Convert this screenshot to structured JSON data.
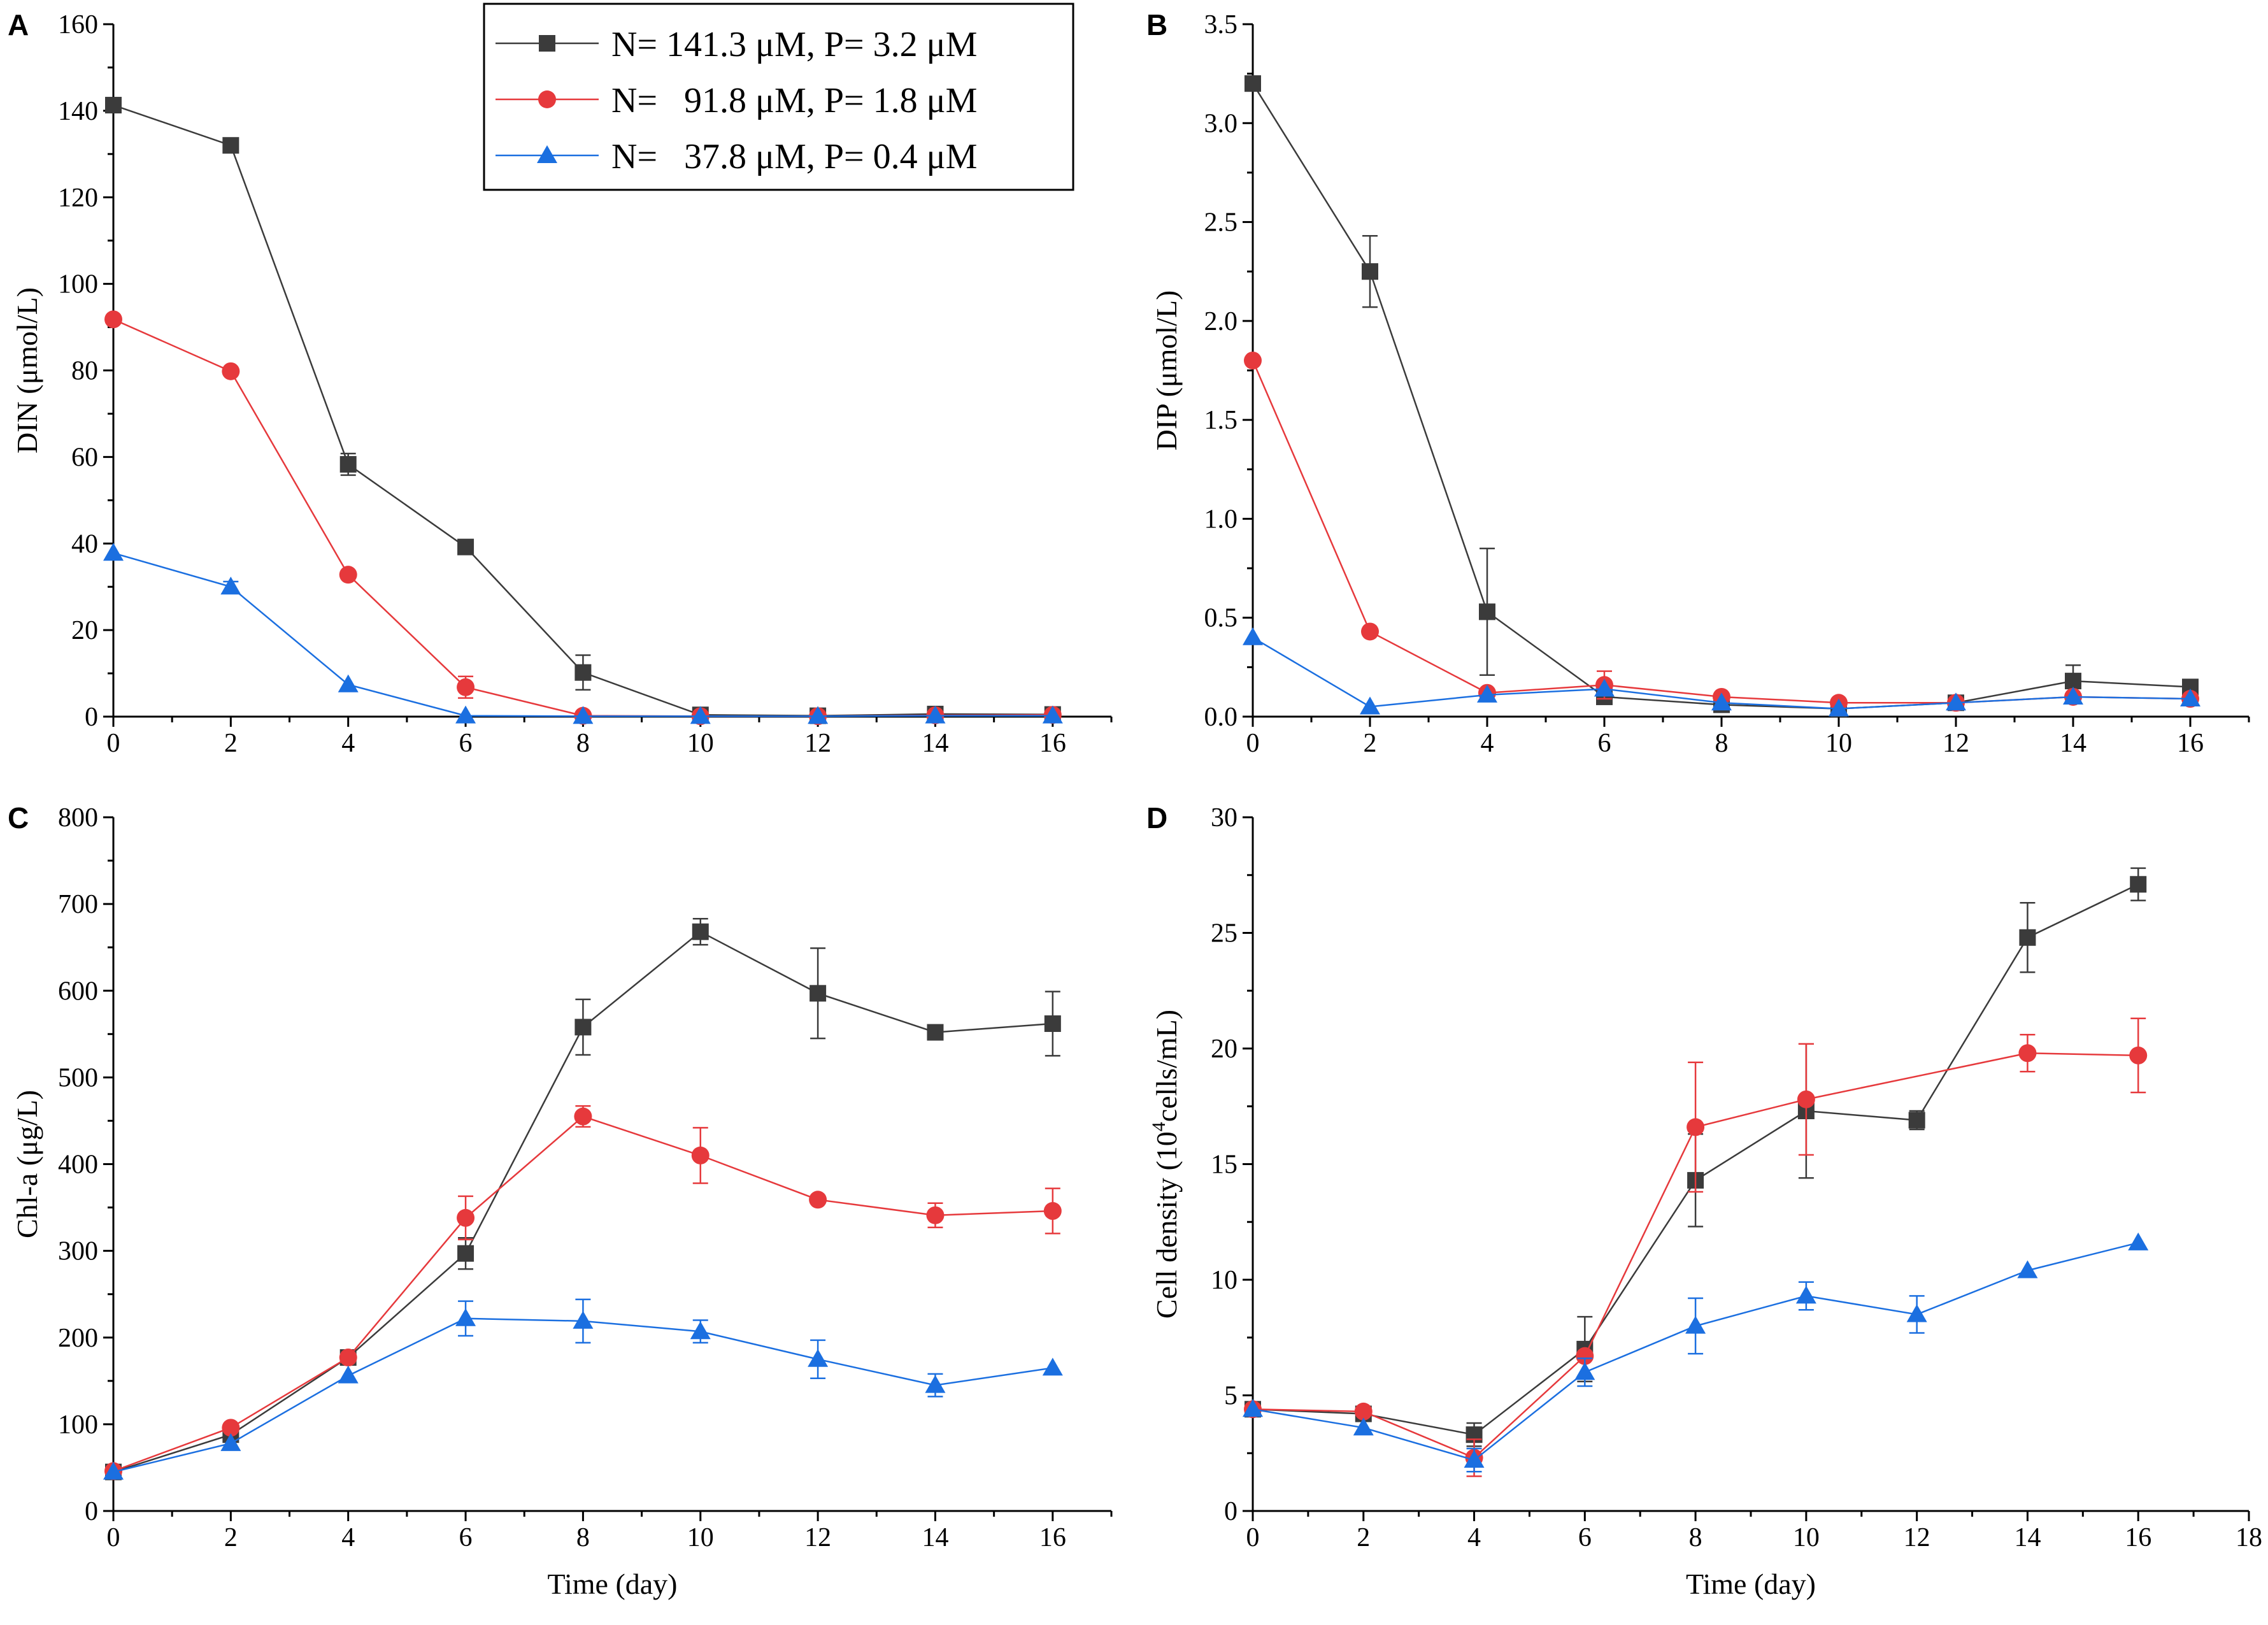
{
  "colors": {
    "black": "#3b3b3b",
    "red": "#e6393c",
    "blue": "#1b6fe0",
    "axis": "#000000"
  },
  "legend": [
    {
      "label": "N= 141.3 μM, P= 3.2 μM",
      "marker": "square",
      "color": "#3b3b3b"
    },
    {
      "label": "N=   91.8 μM, P= 1.8 μM",
      "marker": "circle",
      "color": "#e6393c"
    },
    {
      "label": "N=   37.8 μM, P= 0.4 μM",
      "marker": "triangle",
      "color": "#1b6fe0"
    }
  ],
  "chart_data": [
    {
      "panel": "A",
      "type": "line",
      "ylabel": "DIN (μmol/L)",
      "xlabel": "",
      "xlim": [
        0,
        17
      ],
      "ylim": [
        0,
        160
      ],
      "xticks": [
        0,
        2,
        4,
        6,
        8,
        10,
        12,
        14,
        16
      ],
      "yticks": [
        0,
        20,
        40,
        60,
        80,
        100,
        120,
        140,
        160
      ],
      "x": [
        0,
        2,
        4,
        6,
        8,
        10,
        12,
        14,
        16
      ],
      "series": [
        {
          "name": "N= 141.3 μM, P= 3.2 μM",
          "values": [
            141.3,
            132,
            58.3,
            39.2,
            10.2,
            0.4,
            0.2,
            0.6,
            0.5
          ],
          "errors": [
            0,
            0,
            2.5,
            0,
            4,
            0,
            0,
            0,
            0
          ]
        },
        {
          "name": "N=   91.8 μM, P= 1.8 μM",
          "values": [
            91.8,
            79.8,
            32.8,
            6.8,
            0.2,
            0.1,
            0.1,
            0.3,
            0.4
          ],
          "errors": [
            0,
            0,
            0,
            2.5,
            0,
            0,
            0,
            0,
            0
          ]
        },
        {
          "name": "N=   37.8 μM, P= 0.4 μM",
          "values": [
            37.8,
            30,
            7.4,
            0.2,
            0.1,
            0.1,
            0.1,
            0.2,
            0.2
          ],
          "errors": [
            0,
            1.2,
            0,
            0,
            0,
            0,
            0,
            0,
            0
          ]
        }
      ]
    },
    {
      "panel": "B",
      "type": "line",
      "ylabel": "DIP (μmol/L)",
      "xlabel": "",
      "xlim": [
        0,
        17
      ],
      "ylim": [
        0,
        3.5
      ],
      "xticks": [
        0,
        2,
        4,
        6,
        8,
        10,
        12,
        14,
        16
      ],
      "yticks": [
        0.0,
        0.5,
        1.0,
        1.5,
        2.0,
        2.5,
        3.0,
        3.5
      ],
      "ytick_labels": [
        "0.0",
        "0.5",
        "1.0",
        "1.5",
        "2.0",
        "2.5",
        "3.0",
        "3.5"
      ],
      "x": [
        0,
        2,
        4,
        6,
        8,
        10,
        12,
        14,
        16
      ],
      "series": [
        {
          "name": "N= 141.3 μM, P= 3.2 μM",
          "values": [
            3.2,
            2.25,
            0.53,
            0.1,
            0.06,
            0.04,
            0.07,
            0.18,
            0.15
          ],
          "errors": [
            0,
            0.18,
            0.32,
            0,
            0,
            0,
            0,
            0.08,
            0.03
          ]
        },
        {
          "name": "N=   91.8 μM, P= 1.8 μM",
          "values": [
            1.8,
            0.43,
            0.12,
            0.16,
            0.1,
            0.07,
            0.07,
            0.1,
            0.09
          ],
          "errors": [
            0,
            0,
            0,
            0.07,
            0,
            0,
            0,
            0,
            0
          ]
        },
        {
          "name": "N=   37.8 μM, P= 0.4 μM",
          "values": [
            0.4,
            0.05,
            0.11,
            0.14,
            0.07,
            0.04,
            0.07,
            0.1,
            0.09
          ],
          "errors": [
            0,
            0,
            0,
            0,
            0,
            0,
            0,
            0,
            0
          ]
        }
      ]
    },
    {
      "panel": "C",
      "type": "line",
      "ylabel": "Chl-a (μg/L)",
      "xlabel": "Time (day)",
      "xlim": [
        0,
        17
      ],
      "ylim": [
        0,
        800
      ],
      "xticks": [
        0,
        2,
        4,
        6,
        8,
        10,
        12,
        14,
        16
      ],
      "yticks": [
        0,
        100,
        200,
        300,
        400,
        500,
        600,
        700,
        800
      ],
      "x": [
        0,
        2,
        4,
        6,
        8,
        10,
        12,
        14,
        16
      ],
      "series": [
        {
          "name": "N= 141.3 μM, P= 3.2 μM",
          "values": [
            45,
            88,
            177,
            297,
            558,
            668,
            597,
            552,
            562
          ],
          "errors": [
            0,
            0,
            0,
            18,
            32,
            15,
            52,
            8,
            37
          ]
        },
        {
          "name": "N=   91.8 μM, P= 1.8 μM",
          "values": [
            46,
            96,
            177,
            338,
            455,
            410,
            359,
            341,
            346
          ],
          "errors": [
            0,
            0,
            0,
            25,
            12,
            32,
            0,
            14,
            26
          ]
        },
        {
          "name": "N=   37.8 μM, P= 0.4 μM",
          "values": [
            45,
            78,
            156,
            222,
            219,
            207,
            175,
            145,
            165
          ],
          "errors": [
            0,
            0,
            0,
            20,
            25,
            13,
            22,
            13,
            0
          ]
        }
      ]
    },
    {
      "panel": "D",
      "type": "line",
      "ylabel": "Cell density (10⁴cells/mL)",
      "xlabel": "Time (day)",
      "xlim": [
        0,
        18
      ],
      "ylim": [
        0,
        30
      ],
      "xticks": [
        0,
        2,
        4,
        6,
        8,
        10,
        12,
        14,
        16,
        18
      ],
      "yticks": [
        0,
        5,
        10,
        15,
        20,
        25,
        30
      ],
      "x": [
        0,
        2,
        4,
        6,
        8,
        10,
        12,
        14,
        16
      ],
      "series": [
        {
          "name": "N= 141.3 μM, P= 3.2 μM",
          "values": [
            4.4,
            4.2,
            3.3,
            7.0,
            14.3,
            17.3,
            16.9,
            24.8,
            27.1
          ],
          "errors": [
            0,
            0,
            0.5,
            1.4,
            2.0,
            2.9,
            0.4,
            1.5,
            0.7
          ]
        },
        {
          "name": "N=   91.8 μM, P= 1.8 μM",
          "values": [
            4.4,
            4.3,
            2.3,
            6.7,
            16.6,
            17.8,
            null,
            19.8,
            19.7
          ],
          "errors": [
            0,
            0,
            0.8,
            0,
            2.8,
            2.4,
            0,
            0.8,
            1.6
          ]
        },
        {
          "name": "N=   37.8 μM, P= 0.4 μM",
          "values": [
            4.4,
            3.6,
            2.2,
            6.0,
            8.0,
            9.3,
            8.5,
            10.4,
            11.6
          ],
          "errors": [
            0,
            0,
            0.5,
            0.6,
            1.2,
            0.6,
            0.8,
            0,
            0
          ]
        }
      ]
    }
  ]
}
